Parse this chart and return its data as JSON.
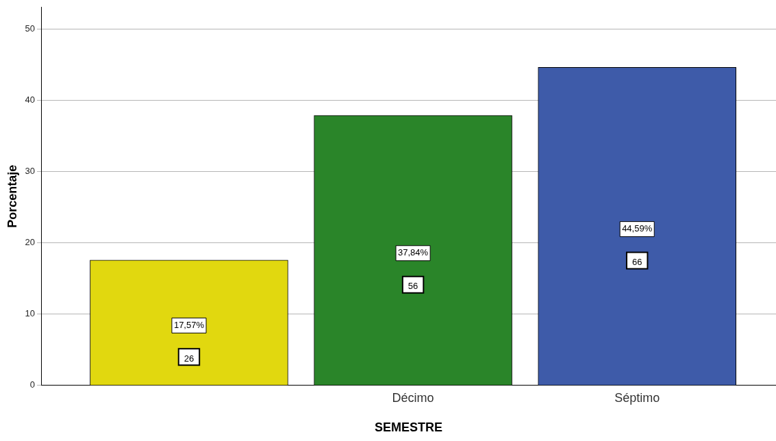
{
  "chart_data": {
    "type": "bar",
    "xlabel": "SEMESTRE",
    "ylabel": "Porcentaje",
    "categories": [
      null,
      "Décimo",
      "Séptimo"
    ],
    "values": [
      17.57,
      37.84,
      44.59
    ],
    "colors": [
      "#e1d80f",
      "#2a8529",
      "#3e5ba9"
    ],
    "value_labels": [
      "17,57%",
      "37,84%",
      "44,59%"
    ],
    "annotations": [
      "26",
      "56",
      "66"
    ],
    "ylim": [
      0,
      53
    ],
    "yticks": [
      0,
      10,
      20,
      30,
      40,
      50
    ],
    "grid": "y",
    "legend": false
  }
}
